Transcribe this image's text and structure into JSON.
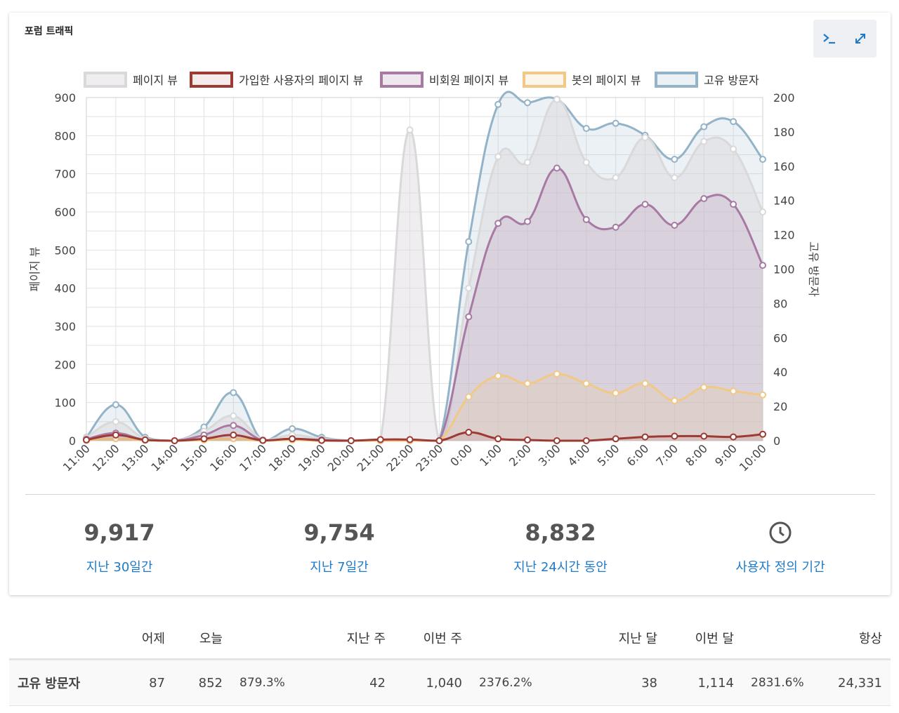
{
  "panel": {
    "title": "포럼 트래픽"
  },
  "toolbar": {
    "console_icon": "terminal-icon",
    "expand_icon": "expand-icon"
  },
  "colors": {
    "pageviews": "#d9d9d9",
    "registered": "#9c3b34",
    "anonymous": "#a87aa3",
    "bot": "#f1c886",
    "unique": "#93b3c8",
    "link": "#1f7ac8",
    "growth": "#2e9c3a"
  },
  "chart_data": {
    "type": "area",
    "x": [
      "11:00",
      "12:00",
      "13:00",
      "14:00",
      "15:00",
      "16:00",
      "17:00",
      "18:00",
      "19:00",
      "20:00",
      "21:00",
      "22:00",
      "23:00",
      "0:00",
      "1:00",
      "2:00",
      "3:00",
      "4:00",
      "5:00",
      "6:00",
      "7:00",
      "8:00",
      "9:00",
      "10:00"
    ],
    "ylabel": "페이지 뷰",
    "y2label": "고유 방문자",
    "ylim": [
      0,
      900
    ],
    "y2lim": [
      0,
      200
    ],
    "yticks": [
      "0",
      "100",
      "200",
      "300",
      "400",
      "500",
      "600",
      "700",
      "800",
      "900"
    ],
    "y2ticks": [
      "0",
      "20",
      "40",
      "60",
      "80",
      "100",
      "120",
      "140",
      "160",
      "180",
      "200"
    ],
    "legend_position": "top",
    "grid": true,
    "series": [
      {
        "name": "페이지 뷰",
        "axis": "left",
        "values": [
          8,
          50,
          5,
          0,
          25,
          65,
          3,
          15,
          5,
          0,
          2,
          815,
          0,
          400,
          745,
          730,
          895,
          730,
          690,
          795,
          690,
          785,
          765,
          600
        ]
      },
      {
        "name": "가입한 사용자의 페이지 뷰",
        "axis": "left",
        "values": [
          2,
          15,
          2,
          0,
          5,
          15,
          1,
          5,
          1,
          0,
          3,
          3,
          0,
          22,
          5,
          2,
          0,
          0,
          5,
          10,
          12,
          12,
          10,
          17
        ]
      },
      {
        "name": "비회원 페이지 뷰",
        "axis": "left",
        "values": [
          4,
          20,
          2,
          0,
          15,
          40,
          1,
          5,
          2,
          0,
          0,
          0,
          0,
          325,
          570,
          575,
          715,
          580,
          560,
          620,
          565,
          635,
          620,
          460
        ]
      },
      {
        "name": "봇의 페이지 뷰",
        "axis": "left",
        "values": [
          1,
          5,
          1,
          0,
          2,
          5,
          0,
          2,
          0,
          0,
          0,
          0,
          0,
          115,
          170,
          150,
          175,
          150,
          125,
          150,
          105,
          140,
          130,
          120
        ]
      },
      {
        "name": "고유 방문자",
        "axis": "right",
        "values": [
          2,
          21,
          2,
          0,
          8,
          28,
          0,
          7,
          2,
          0,
          0,
          0,
          0,
          116,
          196,
          197,
          199,
          182,
          185,
          178,
          164,
          183,
          186,
          164
        ]
      }
    ]
  },
  "stats": [
    {
      "value": "9,917",
      "label": "지난 30일간"
    },
    {
      "value": "9,754",
      "label": "지난 7일간"
    },
    {
      "value": "8,832",
      "label": "지난 24시간 동안"
    },
    {
      "icon": "clock-icon",
      "label": "사용자 정의 기간"
    }
  ],
  "table": {
    "headers": [
      "어제",
      "오늘",
      "지난 주",
      "이번 주",
      "지난 달",
      "이번 달",
      "항상"
    ],
    "row": {
      "label": "고유 방문자",
      "yesterday": "87",
      "today": "852",
      "today_growth": "879.3%",
      "last_week": "42",
      "this_week": "1,040",
      "week_growth": "2376.2%",
      "last_month": "38",
      "this_month": "1,114",
      "month_growth": "2831.6%",
      "all_time": "24,331"
    }
  }
}
